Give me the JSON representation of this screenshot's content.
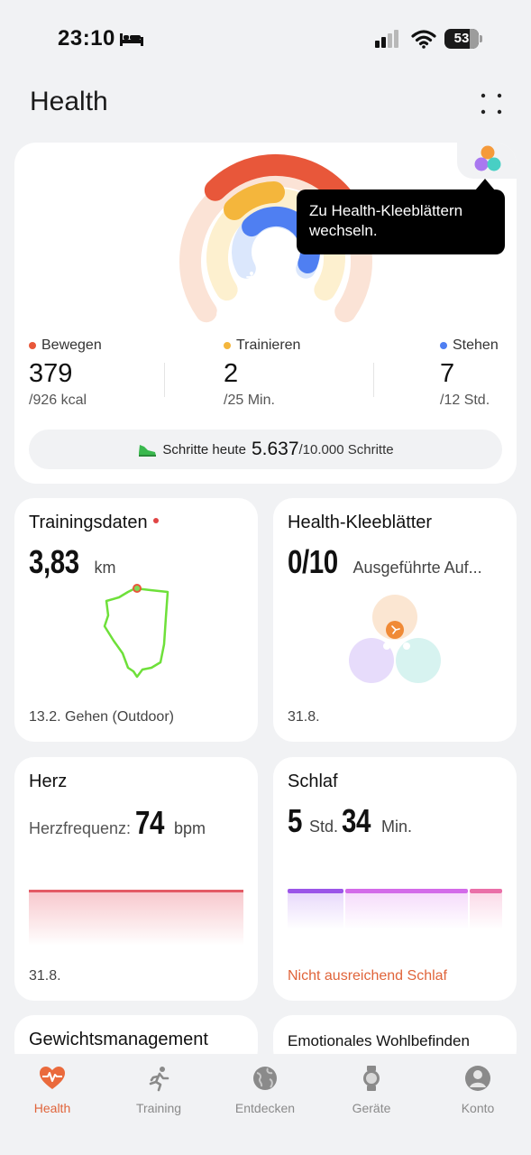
{
  "status_bar": {
    "time": "23:10",
    "battery": "53"
  },
  "header": {
    "title": "Health"
  },
  "rings": {
    "tooltip": [
      "Zu Health-Kleeblättern",
      "wechseln."
    ],
    "move": {
      "label": "Bewegen",
      "value": "379",
      "goal": "/926 kcal",
      "progress": 0.41,
      "color": "#e8573a"
    },
    "exercise": {
      "label": "Trainieren",
      "value": "2",
      "goal": "/25 Min.",
      "progress": 0.08,
      "color": "#f4b63c"
    },
    "stand": {
      "label": "Stehen",
      "value": "7",
      "goal": "/12 Std.",
      "progress": 0.58,
      "color": "#4f7ff2"
    },
    "steps": {
      "label": "Schritte heute",
      "value": "5.637",
      "goal": "/10.000 Schritte"
    }
  },
  "cards": {
    "training": {
      "title": "Trainingsdaten",
      "value": "3,83",
      "unit": "km",
      "foot": "13.2. Gehen (Outdoor)"
    },
    "clover": {
      "title": "Health-Kleeblätter",
      "value": "0/10",
      "unit": "Ausgeführte Auf...",
      "foot": "31.8."
    },
    "heart": {
      "title": "Herz",
      "label": "Herzfrequenz:",
      "value": "74",
      "unit": "bpm",
      "foot": "31.8."
    },
    "sleep": {
      "title": "Schlaf",
      "hours": "5",
      "hours_unit": "Std.",
      "minutes": "34",
      "minutes_unit": "Min.",
      "foot": "Nicht ausreichend Schlaf"
    },
    "weight": {
      "title": "Gewichtsmanagement"
    },
    "mood": {
      "title": "Emotionales Wohlbefinden"
    }
  },
  "nav": [
    {
      "label": "Health",
      "icon": "heart-pulse-icon",
      "active": true
    },
    {
      "label": "Training",
      "icon": "runner-icon",
      "active": false
    },
    {
      "label": "Entdecken",
      "icon": "globe-icon",
      "active": false
    },
    {
      "label": "Geräte",
      "icon": "watch-icon",
      "active": false
    },
    {
      "label": "Konto",
      "icon": "avatar-icon",
      "active": false
    }
  ]
}
